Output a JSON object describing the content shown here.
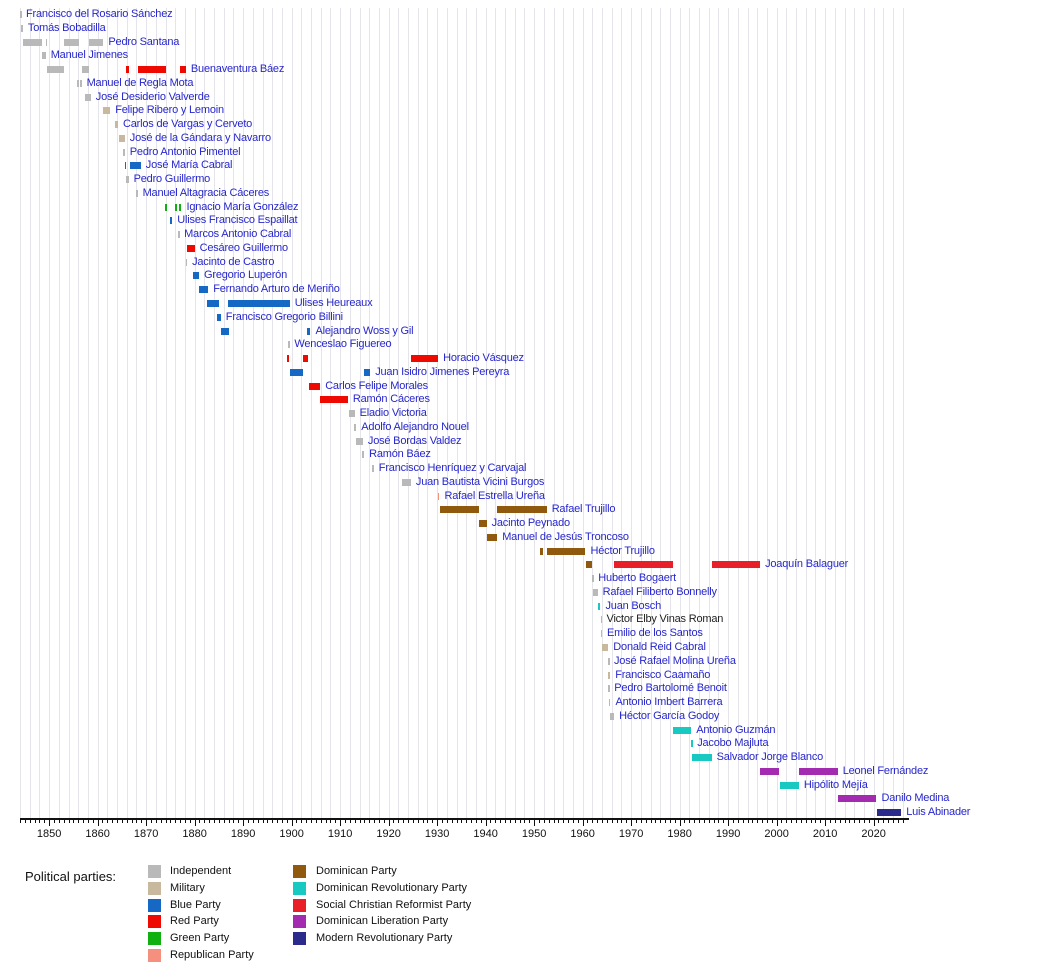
{
  "chart_data": {
    "type": "bar",
    "subtype": "timeline-gantt",
    "description": "Timeline of presidents of the Dominican Republic with terms colored by political party",
    "x_axis": {
      "min_year": 1844,
      "max_year": 2026,
      "gridline_step_years": 2,
      "tick_step_years": 1,
      "decade_labels": [
        "1850",
        "1860",
        "1870",
        "1880",
        "1890",
        "1900",
        "1910",
        "1920",
        "1930",
        "1940",
        "1950",
        "1960",
        "1970",
        "1980",
        "1990",
        "2000",
        "2010",
        "2020"
      ]
    },
    "parties": {
      "independent": {
        "label": "Independent",
        "color": "#b9b9b9"
      },
      "military": {
        "label": "Military",
        "color": "#c8b89e"
      },
      "blue": {
        "label": "Blue Party",
        "color": "#1569c4"
      },
      "red": {
        "label": "Red Party",
        "color": "#ee0a00"
      },
      "green": {
        "label": "Green Party",
        "color": "#0fb00f"
      },
      "republican": {
        "label": "Republican Party",
        "color": "#f5907f"
      },
      "dominican": {
        "label": "Dominican Party",
        "color": "#8f5a0e"
      },
      "prd": {
        "label": "Dominican Revolutionary Party",
        "color": "#18c9c2"
      },
      "scrp": {
        "label": "Social Christian Reformist Party",
        "color": "#e81e28"
      },
      "pld": {
        "label": "Dominican Liberation Party",
        "color": "#a32bb0"
      },
      "prm": {
        "label": "Modern Revolutionary Party",
        "color": "#2b2b8c"
      }
    },
    "presidents": [
      {
        "name": "Francisco del Rosario Sánchez",
        "terms": [
          {
            "start": 1844.0,
            "end": 1844.2,
            "party": "independent"
          }
        ]
      },
      {
        "name": "Tomás Bobadilla",
        "terms": [
          {
            "start": 1844.2,
            "end": 1844.6,
            "party": "independent"
          }
        ]
      },
      {
        "name": "Pedro Santana",
        "terms": [
          {
            "start": 1844.6,
            "end": 1848.6,
            "party": "independent"
          },
          {
            "start": 1849.3,
            "end": 1849.6,
            "party": "independent"
          },
          {
            "start": 1853.0,
            "end": 1856.2,
            "party": "independent"
          },
          {
            "start": 1858.2,
            "end": 1861.2,
            "party": "independent"
          }
        ]
      },
      {
        "name": "Manuel Jimenes",
        "terms": [
          {
            "start": 1848.6,
            "end": 1849.3,
            "party": "independent"
          }
        ]
      },
      {
        "name": "Buenaventura Báez",
        "terms": [
          {
            "start": 1849.6,
            "end": 1853.0,
            "party": "independent"
          },
          {
            "start": 1856.7,
            "end": 1858.2,
            "party": "independent"
          },
          {
            "start": 1865.9,
            "end": 1866.4,
            "party": "red"
          },
          {
            "start": 1868.3,
            "end": 1874.1,
            "party": "red"
          },
          {
            "start": 1876.9,
            "end": 1878.2,
            "party": "red"
          }
        ]
      },
      {
        "name": "Manuel de Regla Mota",
        "terms": [
          {
            "start": 1855.8,
            "end": 1856.1,
            "party": "independent"
          },
          {
            "start": 1856.3,
            "end": 1856.7,
            "party": "independent"
          }
        ]
      },
      {
        "name": "José Desiderio Valverde",
        "terms": [
          {
            "start": 1857.4,
            "end": 1858.6,
            "party": "independent"
          }
        ]
      },
      {
        "name": "Felipe Ribero y Lemoin",
        "terms": [
          {
            "start": 1861.2,
            "end": 1862.6,
            "party": "military"
          }
        ]
      },
      {
        "name": "Carlos de Vargas y Cerveto",
        "terms": [
          {
            "start": 1863.6,
            "end": 1864.2,
            "party": "military"
          }
        ]
      },
      {
        "name": "José de la Gándara y Navarro",
        "terms": [
          {
            "start": 1864.3,
            "end": 1865.6,
            "party": "military"
          }
        ]
      },
      {
        "name": "Pedro Antonio Pimentel",
        "terms": [
          {
            "start": 1865.2,
            "end": 1865.6,
            "party": "independent"
          }
        ]
      },
      {
        "name": "José María Cabral",
        "terms": [
          {
            "start": 1865.6,
            "end": 1865.9,
            "party": "blue"
          },
          {
            "start": 1866.7,
            "end": 1868.9,
            "party": "blue"
          }
        ]
      },
      {
        "name": "Pedro Guillermo",
        "terms": [
          {
            "start": 1865.9,
            "end": 1866.4,
            "party": "independent"
          }
        ]
      },
      {
        "name": "Manuel Altagracia Cáceres",
        "terms": [
          {
            "start": 1868.0,
            "end": 1868.25,
            "party": "independent"
          }
        ]
      },
      {
        "name": "Ignacio María González",
        "terms": [
          {
            "start": 1873.9,
            "end": 1874.4,
            "party": "green"
          },
          {
            "start": 1876.0,
            "end": 1876.4,
            "party": "green"
          },
          {
            "start": 1876.8,
            "end": 1877.3,
            "party": "green"
          }
        ]
      },
      {
        "name": "Ulises Francisco Espaillat",
        "terms": [
          {
            "start": 1874.9,
            "end": 1875.4,
            "party": "blue"
          }
        ]
      },
      {
        "name": "Marcos Antonio Cabral",
        "terms": [
          {
            "start": 1876.6,
            "end": 1876.8,
            "party": "independent"
          }
        ]
      },
      {
        "name": "Cesáreo Guillermo",
        "terms": [
          {
            "start": 1878.4,
            "end": 1880.0,
            "party": "red"
          }
        ]
      },
      {
        "name": "Jacinto de Castro",
        "terms": [
          {
            "start": 1878.2,
            "end": 1878.45,
            "party": "independent"
          }
        ]
      },
      {
        "name": "Gregorio Luperón",
        "terms": [
          {
            "start": 1879.7,
            "end": 1880.9,
            "party": "blue"
          }
        ]
      },
      {
        "name": "Fernando Arturo de Meriño",
        "terms": [
          {
            "start": 1880.8,
            "end": 1882.8,
            "party": "blue"
          }
        ]
      },
      {
        "name": "Ulises Heureaux",
        "terms": [
          {
            "start": 1882.6,
            "end": 1885.0,
            "party": "blue"
          },
          {
            "start": 1886.8,
            "end": 1899.6,
            "party": "blue"
          }
        ]
      },
      {
        "name": "Francisco Gregorio Billini",
        "terms": [
          {
            "start": 1884.7,
            "end": 1885.4,
            "party": "blue"
          }
        ]
      },
      {
        "name": "Alejandro Woss y Gil",
        "terms": [
          {
            "start": 1885.4,
            "end": 1887.2,
            "party": "blue"
          },
          {
            "start": 1903.1,
            "end": 1903.9,
            "party": "blue"
          }
        ]
      },
      {
        "name": "Wenceslao Figuereo",
        "terms": [
          {
            "start": 1899.3,
            "end": 1899.55,
            "party": "independent"
          }
        ]
      },
      {
        "name": "Horacio Vásquez",
        "terms": [
          {
            "start": 1899.1,
            "end": 1899.5,
            "party": "red"
          },
          {
            "start": 1902.3,
            "end": 1903.3,
            "party": "red"
          },
          {
            "start": 1924.6,
            "end": 1930.2,
            "party": "red"
          }
        ]
      },
      {
        "name": "Juan Isidro Jimenes Pereyra",
        "terms": [
          {
            "start": 1899.7,
            "end": 1902.3,
            "party": "blue"
          },
          {
            "start": 1914.9,
            "end": 1916.2,
            "party": "blue"
          }
        ]
      },
      {
        "name": "Carlos Felipe Morales",
        "terms": [
          {
            "start": 1903.5,
            "end": 1905.9,
            "party": "red"
          }
        ]
      },
      {
        "name": "Ramón Cáceres",
        "terms": [
          {
            "start": 1905.9,
            "end": 1911.6,
            "party": "red"
          }
        ]
      },
      {
        "name": "Eladio Victoria",
        "terms": [
          {
            "start": 1911.8,
            "end": 1913.0,
            "party": "independent"
          }
        ]
      },
      {
        "name": "Adolfo Alejandro Nouel",
        "terms": [
          {
            "start": 1912.9,
            "end": 1913.35,
            "party": "independent"
          }
        ]
      },
      {
        "name": "José Bordas Valdez",
        "terms": [
          {
            "start": 1913.3,
            "end": 1914.7,
            "party": "independent"
          }
        ]
      },
      {
        "name": "Ramón Báez",
        "terms": [
          {
            "start": 1914.6,
            "end": 1914.95,
            "party": "independent"
          }
        ]
      },
      {
        "name": "Francisco Henríquez y Carvajal",
        "terms": [
          {
            "start": 1916.6,
            "end": 1916.95,
            "party": "independent"
          }
        ]
      },
      {
        "name": "Juan Bautista Vicini Burgos",
        "terms": [
          {
            "start": 1922.8,
            "end": 1924.6,
            "party": "independent"
          }
        ]
      },
      {
        "name": "Rafael Estrella Ureña",
        "terms": [
          {
            "start": 1930.1,
            "end": 1930.5,
            "party": "republican"
          }
        ]
      },
      {
        "name": "Rafael Trujillo",
        "terms": [
          {
            "start": 1930.5,
            "end": 1938.6,
            "party": "dominican"
          },
          {
            "start": 1942.4,
            "end": 1952.6,
            "party": "dominican"
          }
        ]
      },
      {
        "name": "Jacinto Peynado",
        "terms": [
          {
            "start": 1938.6,
            "end": 1940.2,
            "party": "dominican"
          }
        ]
      },
      {
        "name": "Manuel de Jesús Troncoso",
        "terms": [
          {
            "start": 1940.2,
            "end": 1942.4,
            "party": "dominican"
          }
        ]
      },
      {
        "name": "Héctor Trujillo",
        "terms": [
          {
            "start": 1951.3,
            "end": 1951.8,
            "party": "dominican"
          },
          {
            "start": 1952.6,
            "end": 1960.6,
            "party": "dominican"
          }
        ]
      },
      {
        "name": "Joaquín Balaguer",
        "terms": [
          {
            "start": 1960.6,
            "end": 1962.0,
            "party": "dominican"
          },
          {
            "start": 1966.5,
            "end": 1978.6,
            "party": "scrp"
          },
          {
            "start": 1986.6,
            "end": 1996.6,
            "party": "scrp"
          }
        ]
      },
      {
        "name": "Huberto Bogaert",
        "terms": [
          {
            "start": 1962.0,
            "end": 1962.2,
            "party": "independent"
          }
        ]
      },
      {
        "name": "Rafael Filiberto Bonnelly",
        "terms": [
          {
            "start": 1962.2,
            "end": 1963.1,
            "party": "independent"
          }
        ]
      },
      {
        "name": "Juan Bosch",
        "terms": [
          {
            "start": 1963.1,
            "end": 1963.7,
            "party": "prd"
          }
        ]
      },
      {
        "name": "Victor Elby Vinas Roman",
        "text_style": "plain",
        "terms": [
          {
            "start": 1963.7,
            "end": 1963.9,
            "party": "independent"
          }
        ]
      },
      {
        "name": "Emilio de los Santos",
        "terms": [
          {
            "start": 1963.7,
            "end": 1964.0,
            "party": "military"
          }
        ]
      },
      {
        "name": "Donald Reid Cabral",
        "terms": [
          {
            "start": 1964.0,
            "end": 1965.3,
            "party": "military"
          }
        ]
      },
      {
        "name": "José Rafael Molina Ureña",
        "terms": [
          {
            "start": 1965.3,
            "end": 1965.45,
            "party": "independent"
          }
        ]
      },
      {
        "name": "Francisco Caamaño",
        "terms": [
          {
            "start": 1965.3,
            "end": 1965.7,
            "party": "military"
          }
        ]
      },
      {
        "name": "Pedro Bartolomé Benoit",
        "terms": [
          {
            "start": 1965.3,
            "end": 1965.5,
            "party": "independent"
          }
        ]
      },
      {
        "name": "Antonio Imbert Barrera",
        "terms": [
          {
            "start": 1965.4,
            "end": 1965.75,
            "party": "military"
          }
        ]
      },
      {
        "name": "Héctor García Godoy",
        "terms": [
          {
            "start": 1965.7,
            "end": 1966.5,
            "party": "independent"
          }
        ]
      },
      {
        "name": "Antonio Guzmán",
        "terms": [
          {
            "start": 1978.6,
            "end": 1982.4,
            "party": "prd"
          }
        ]
      },
      {
        "name": "Jacobo Majluta",
        "terms": [
          {
            "start": 1982.4,
            "end": 1982.6,
            "party": "prd"
          }
        ]
      },
      {
        "name": "Salvador Jorge Blanco",
        "terms": [
          {
            "start": 1982.6,
            "end": 1986.6,
            "party": "prd"
          }
        ]
      },
      {
        "name": "Leonel Fernández",
        "terms": [
          {
            "start": 1996.6,
            "end": 2000.6,
            "party": "pld"
          },
          {
            "start": 2004.6,
            "end": 2012.6,
            "party": "pld"
          }
        ]
      },
      {
        "name": "Hipólito Mejía",
        "terms": [
          {
            "start": 2000.6,
            "end": 2004.6,
            "party": "prd"
          }
        ]
      },
      {
        "name": "Danilo Medina",
        "terms": [
          {
            "start": 2012.6,
            "end": 2020.6,
            "party": "pld"
          }
        ]
      },
      {
        "name": "Luis Abinader",
        "terms": [
          {
            "start": 2020.6,
            "end": 2025.7,
            "party": "prm"
          }
        ]
      }
    ]
  },
  "legend": {
    "title": "Political parties:",
    "columns": [
      [
        "independent",
        "military",
        "blue",
        "red",
        "green",
        "republican"
      ],
      [
        "dominican",
        "prd",
        "scrp",
        "pld",
        "prm"
      ]
    ]
  }
}
